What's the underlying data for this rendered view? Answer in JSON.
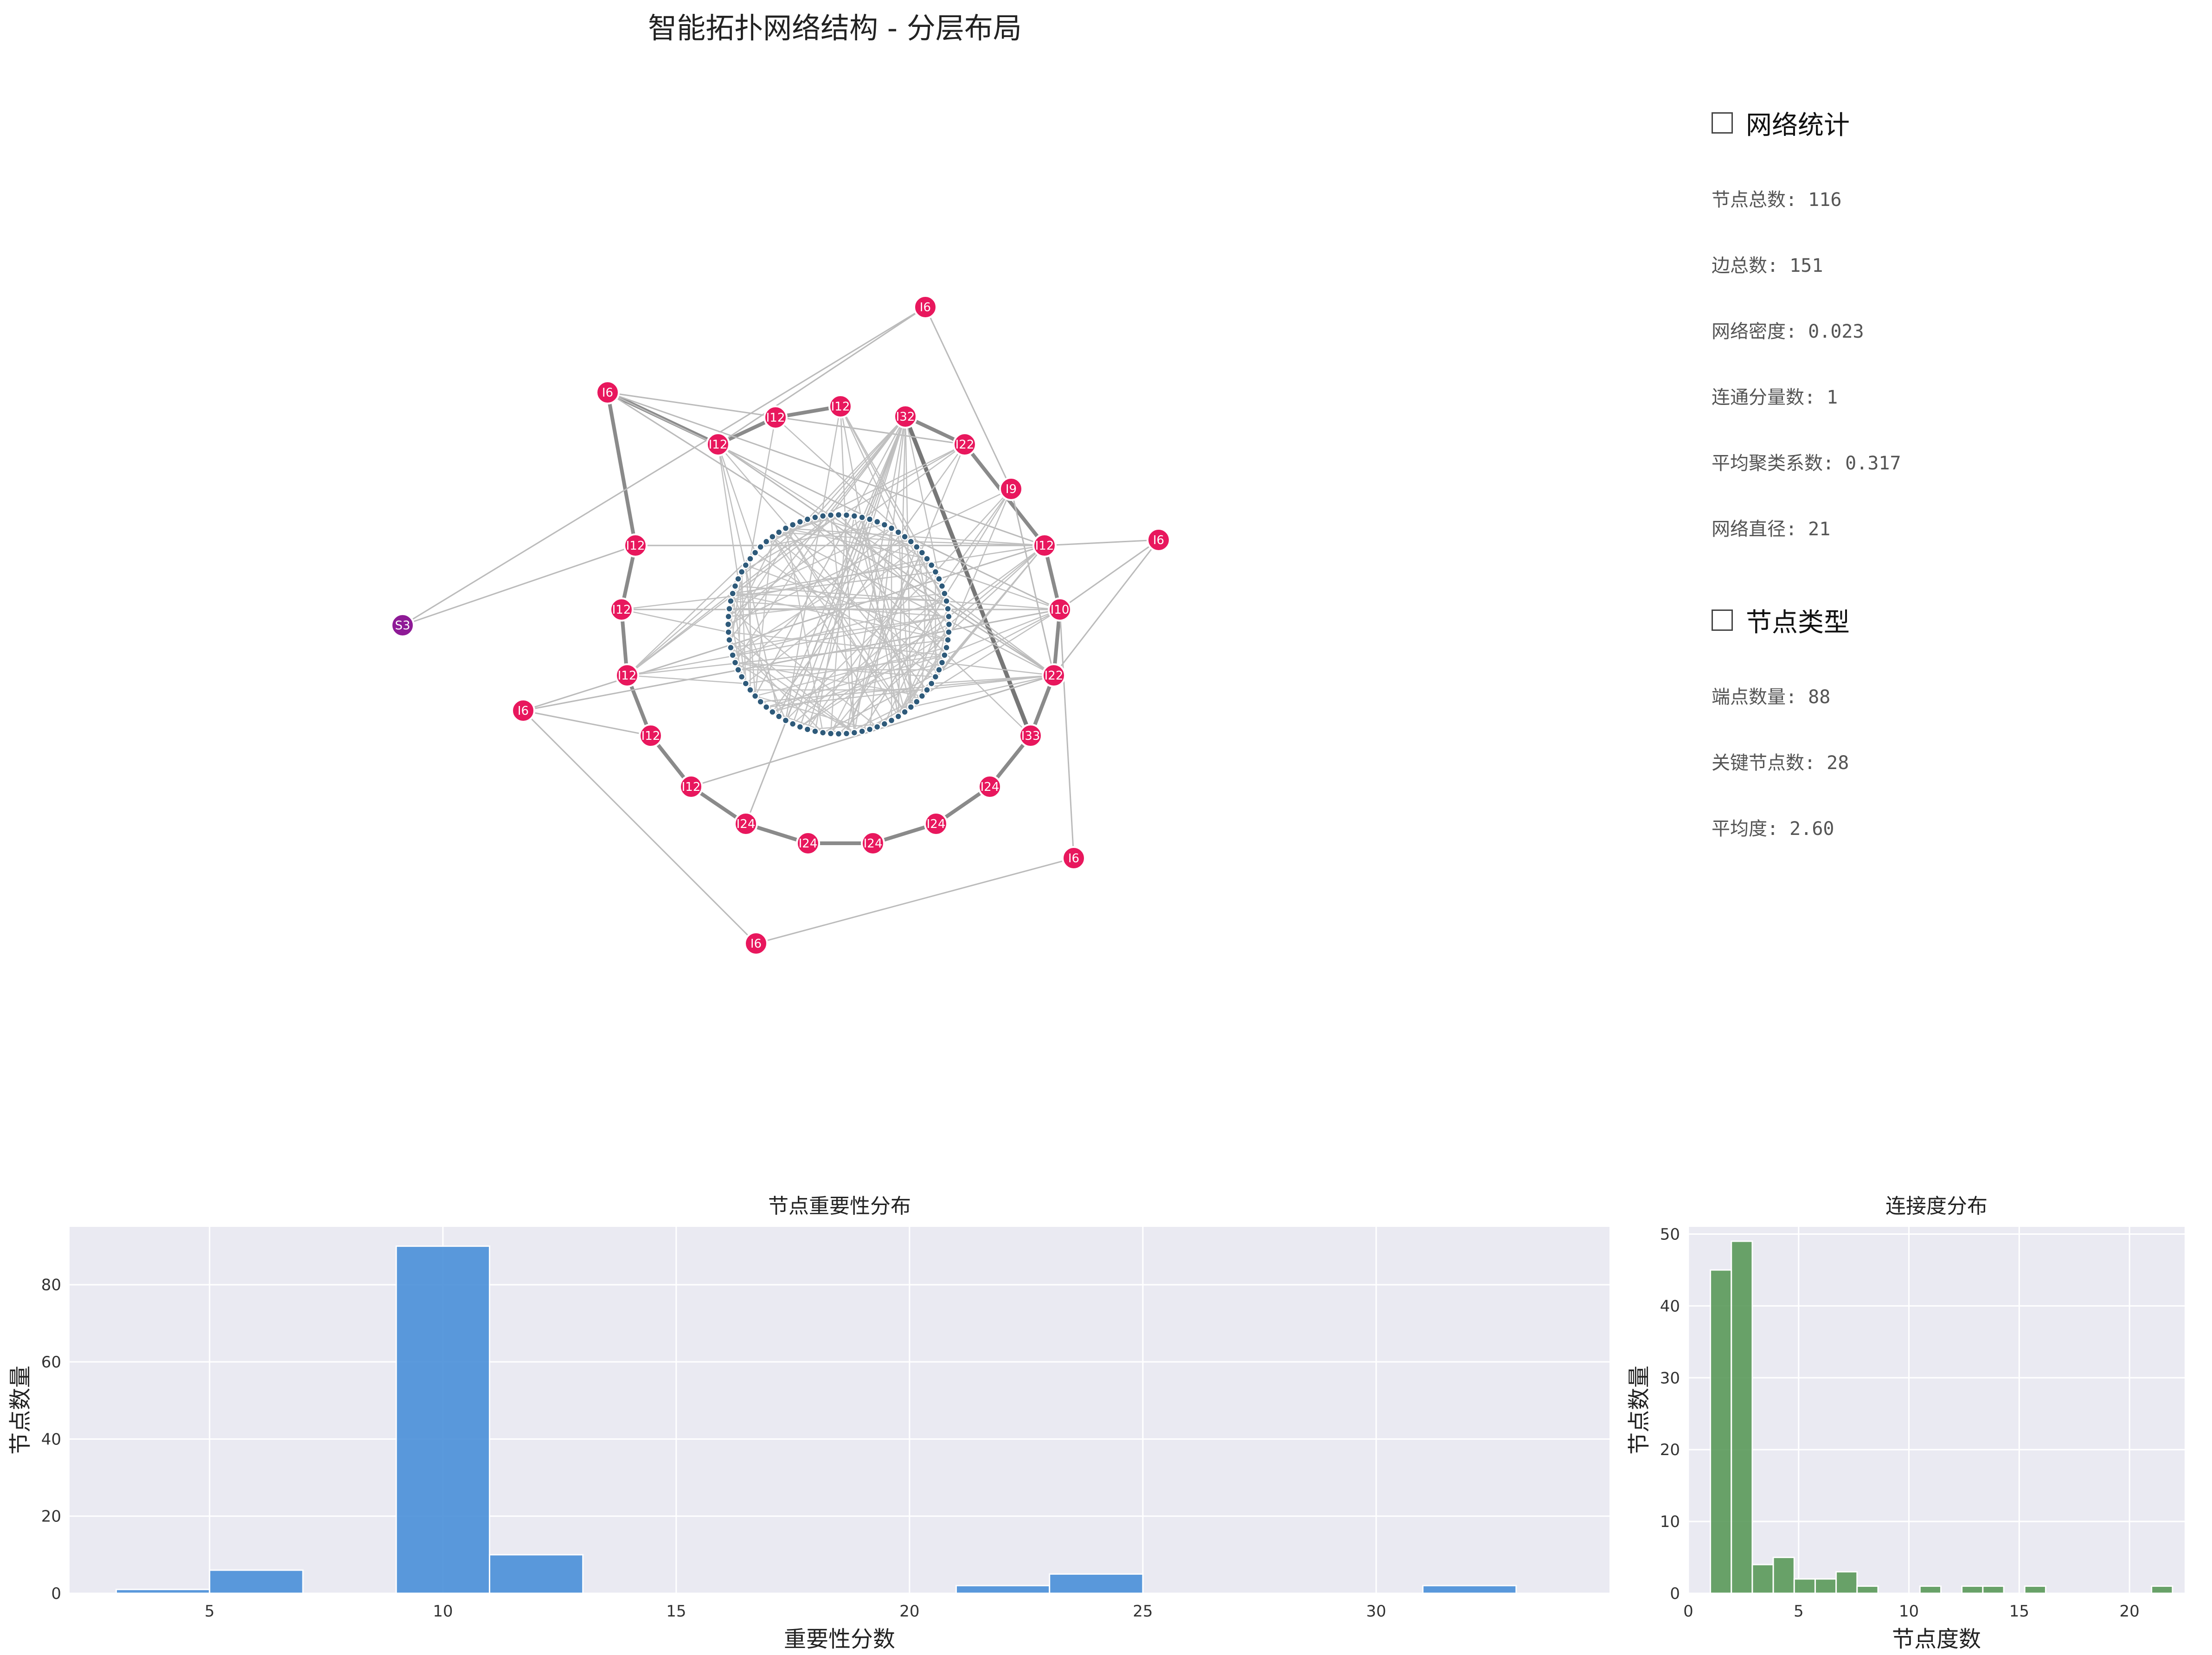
{
  "title": "智能拓扑网络结构 - 分层布局",
  "stats": {
    "network_heading": "网络统计",
    "network_items": [
      "节点总数: 116",
      "边总数: 151",
      "网络密度: 0.023",
      "连通分量数: 1",
      "平均聚类系数: 0.317",
      "网络直径: 21"
    ],
    "type_heading": "节点类型",
    "type_items": [
      "端点数量: 88",
      "关键节点数: 28",
      "平均度: 2.60"
    ]
  },
  "network": {
    "colors": {
      "key_node": "#e8175d",
      "server_node": "#8e1a96",
      "endpoint": "#2e5a7a",
      "edge": "#999999"
    },
    "labels": [
      "I6",
      "I6",
      "I12",
      "I12",
      "I12",
      "I32",
      "I22",
      "I9",
      "I6",
      "I12",
      "I12",
      "I10",
      "I12",
      "I22",
      "S3",
      "I12",
      "I6",
      "I33",
      "I12",
      "I24",
      "I12",
      "I24",
      "I24",
      "I24",
      "I24",
      "I6",
      "I6"
    ]
  },
  "chart_data": [
    {
      "type": "bar",
      "title": "节点重要性分布",
      "xlabel": "重要性分数",
      "ylabel": "节点数量",
      "xlim": [
        2,
        35
      ],
      "ylim": [
        0,
        95
      ],
      "xticks": [
        5,
        10,
        15,
        20,
        25,
        30
      ],
      "yticks": [
        0,
        20,
        40,
        60,
        80
      ],
      "bin_width": 2,
      "bins": [
        {
          "x0": 3,
          "count": 1
        },
        {
          "x0": 5,
          "count": 6
        },
        {
          "x0": 9,
          "count": 90
        },
        {
          "x0": 11,
          "count": 10
        },
        {
          "x0": 21,
          "count": 2
        },
        {
          "x0": 23,
          "count": 5
        },
        {
          "x0": 31,
          "count": 2
        }
      ],
      "color": "#4a90d9",
      "grid": true
    },
    {
      "type": "bar",
      "title": "连接度分布",
      "xlabel": "节点度数",
      "ylabel": "节点数量",
      "xlim": [
        0,
        22.5
      ],
      "ylim": [
        0,
        51
      ],
      "xticks": [
        0,
        5,
        10,
        15,
        20
      ],
      "yticks": [
        0,
        10,
        20,
        30,
        40,
        50
      ],
      "bin_width": 0.95,
      "bins": [
        {
          "x0": 1.0,
          "count": 45
        },
        {
          "x0": 1.95,
          "count": 49
        },
        {
          "x0": 2.9,
          "count": 4
        },
        {
          "x0": 3.85,
          "count": 5
        },
        {
          "x0": 4.8,
          "count": 2
        },
        {
          "x0": 5.75,
          "count": 2
        },
        {
          "x0": 6.7,
          "count": 3
        },
        {
          "x0": 7.65,
          "count": 1
        },
        {
          "x0": 10.5,
          "count": 1
        },
        {
          "x0": 12.4,
          "count": 1
        },
        {
          "x0": 13.35,
          "count": 1
        },
        {
          "x0": 15.25,
          "count": 1
        },
        {
          "x0": 21.0,
          "count": 1
        }
      ],
      "color": "#5a9a5a",
      "grid": true
    }
  ]
}
